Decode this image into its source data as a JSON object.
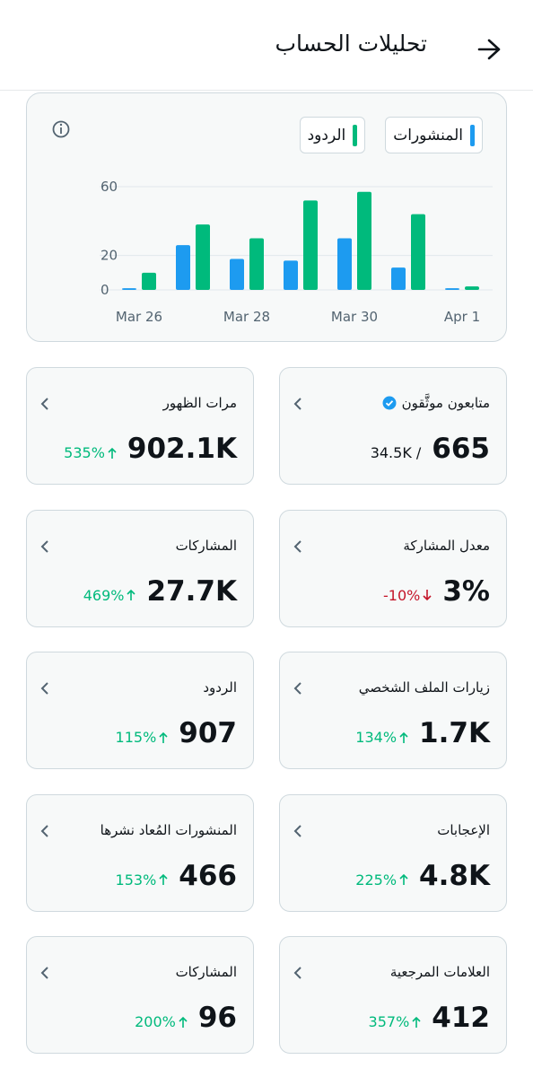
{
  "header": {
    "title": "تحليلات الحساب"
  },
  "chart_data": {
    "type": "bar",
    "categories": [
      "Mar 26",
      null,
      "Mar 28",
      null,
      "Mar 30",
      null,
      "Apr 1"
    ],
    "series": [
      {
        "name": "المنشورات",
        "color": "#1d9bf0",
        "values": [
          1,
          26,
          18,
          17,
          30,
          13,
          1
        ]
      },
      {
        "name": "الردود",
        "color": "#00ba7c",
        "values": [
          10,
          38,
          30,
          52,
          57,
          44,
          2
        ]
      }
    ],
    "ylim": [
      0,
      60
    ],
    "yticks": [
      0,
      20,
      60
    ],
    "grid": true
  },
  "cards": [
    {
      "title": "متابعون موثَّقون",
      "verified": true,
      "value": "665",
      "sub": "34.5K /"
    },
    {
      "title": "مرات الظهور",
      "value": "902.1K",
      "change": "535%",
      "trend": "up"
    },
    {
      "title": "معدل المشاركة",
      "value": "3%",
      "change": "-10%",
      "trend": "down"
    },
    {
      "title": "المشاركات",
      "value": "27.7K",
      "change": "469%",
      "trend": "up"
    },
    {
      "title": "زيارات الملف الشخصي",
      "value": "1.7K",
      "change": "134%",
      "trend": "up"
    },
    {
      "title": "الردود",
      "value": "907",
      "change": "115%",
      "trend": "up"
    },
    {
      "title": "الإعجابات",
      "value": "4.8K",
      "change": "225%",
      "trend": "up"
    },
    {
      "title": "المنشورات المُعاد نشرها",
      "value": "466",
      "change": "153%",
      "trend": "up"
    },
    {
      "title": "العلامات المرجعية",
      "value": "412",
      "change": "357%",
      "trend": "up"
    },
    {
      "title": "المشاركات",
      "value": "96",
      "change": "200%",
      "trend": "up"
    }
  ]
}
